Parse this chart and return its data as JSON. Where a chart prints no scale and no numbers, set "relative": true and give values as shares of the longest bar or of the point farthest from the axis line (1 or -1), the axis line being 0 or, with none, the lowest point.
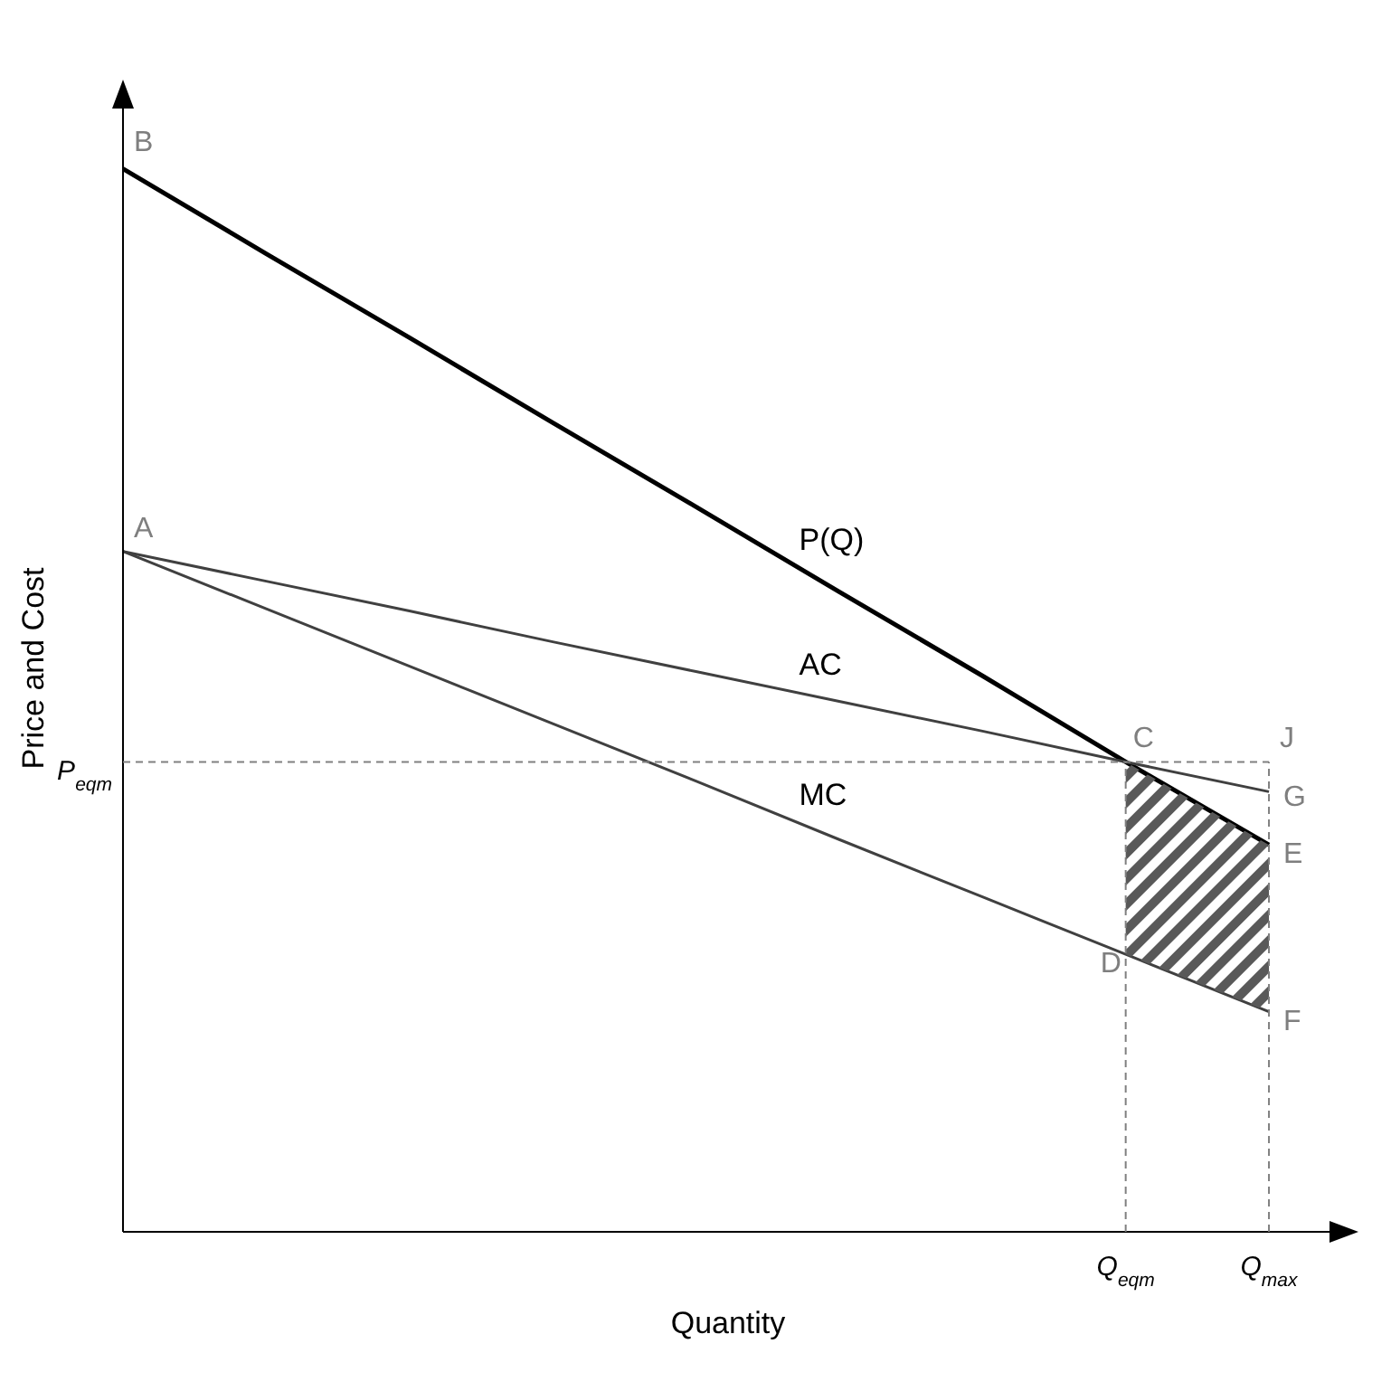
{
  "chart_data": {
    "type": "line",
    "relative": true,
    "xlabel": "Quantity",
    "ylabel": "Price and Cost",
    "categories": [
      null,
      null,
      null,
      null,
      null,
      null,
      null,
      "Q$_{eqm}$",
      "Q$_{max}$"
    ],
    "tick_labels": "x",
    "grid": false,
    "legend": false,
    "marker": "none",
    "line_style": "solid",
    "series": [
      {
        "name": "P(Q)",
        "color": "#000000",
        "values": [
          1,
          0.92,
          0.841,
          0.761,
          0.682,
          0.602,
          0.523,
          0.442,
          0.364
        ]
      },
      {
        "name": "AC",
        "color": "#404040",
        "values": [
          0.64,
          0.612,
          0.584,
          0.555,
          0.527,
          0.499,
          0.471,
          0.442,
          0.414
        ]
      },
      {
        "name": "MC",
        "color": "#404040",
        "values": [
          0.64,
          0.586,
          0.532,
          0.478,
          0.424,
          0.369,
          0.315,
          0.261,
          0.207
        ]
      }
    ],
    "ref_lines": [
      {
        "axis": "y",
        "value": 0.442,
        "label": "P$_{eqm}$",
        "line_style": "dashed",
        "color": "#808080"
      },
      {
        "axis": "x",
        "value": "Q$_{eqm}$",
        "line_style": "dashed",
        "color": "#808080"
      },
      {
        "axis": "x",
        "value": "Q$_{max}$",
        "line_style": "dashed",
        "color": "#808080"
      }
    ],
    "annotations": [
      {
        "text": "B",
        "y": 1
      },
      {
        "text": "A",
        "y": 0.64
      },
      {
        "text": "C",
        "x": "Q$_{eqm}$",
        "y": 0.442
      },
      {
        "text": "J",
        "x": "Q$_{max}$",
        "y": 0.442
      },
      {
        "text": "G",
        "x": "Q$_{max}$",
        "y": 0.414
      },
      {
        "text": "E",
        "x": "Q$_{max}$",
        "y": 0.364
      },
      {
        "text": "D",
        "x": "Q$_{eqm}$",
        "y": 0.261
      },
      {
        "text": "F",
        "x": "Q$_{max}$",
        "y": 0.207
      }
    ]
  }
}
